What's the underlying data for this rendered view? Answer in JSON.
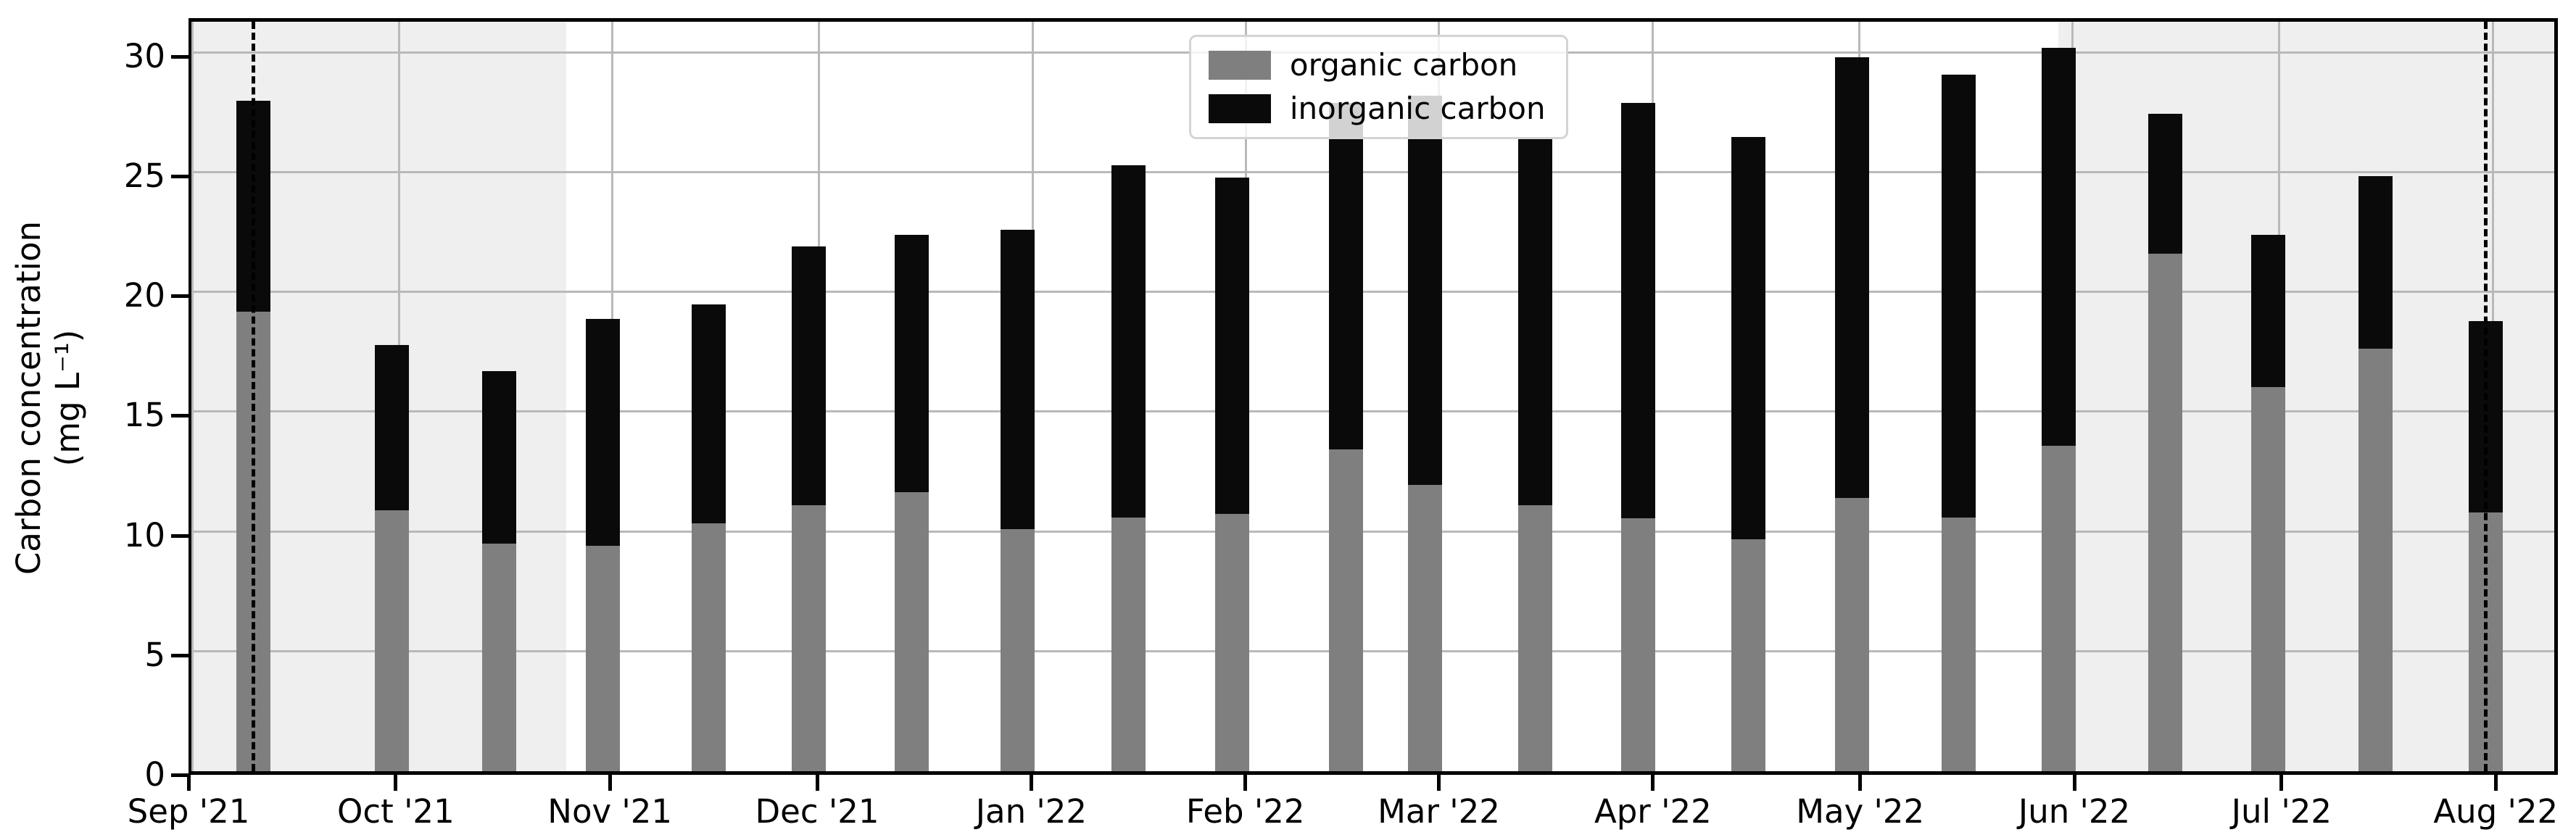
{
  "figure": {
    "kind": "stacked bar chart",
    "background_color": "#ffffff",
    "shaded_region_color": "#efefef",
    "gridline_color": "#b9b9b9",
    "spine_color": "#000000"
  },
  "y_axis": {
    "label_line1": "Carbon concentration",
    "label_line2": "(mg L⁻¹)",
    "tick_values": [
      0,
      5,
      10,
      15,
      20,
      25,
      30
    ],
    "max_value": 31.6
  },
  "x_axis": {
    "total_days": 343,
    "ticks": [
      {
        "label": "Sep '21",
        "day": 0
      },
      {
        "label": "Oct '21",
        "day": 30
      },
      {
        "label": "Nov '21",
        "day": 61
      },
      {
        "label": "Dec '21",
        "day": 91
      },
      {
        "label": "Jan '22",
        "day": 122
      },
      {
        "label": "Feb '22",
        "day": 153
      },
      {
        "label": "Mar '22",
        "day": 181
      },
      {
        "label": "Apr '22",
        "day": 212
      },
      {
        "label": "May '22",
        "day": 242
      },
      {
        "label": "Jun '22",
        "day": 273
      },
      {
        "label": "Jul '22",
        "day": 303
      },
      {
        "label": "Aug '22",
        "day": 334
      }
    ]
  },
  "legend": {
    "items": [
      {
        "label": "organic carbon",
        "color": "#7f7f7f"
      },
      {
        "label": "inorganic carbon",
        "color": "#0a0a0a"
      }
    ]
  },
  "annotations": {
    "dashed_line_days": [
      8.9,
      333
    ],
    "shaded_region_days": [
      [
        0,
        54.3
      ],
      [
        271,
        343
      ]
    ]
  },
  "chart_data": {
    "type": "bar",
    "stacked": true,
    "title": "",
    "xlabel": "",
    "ylabel": "Carbon concentration (mg L⁻¹)",
    "ylim": [
      0,
      31.6
    ],
    "grid": true,
    "legend_position": "upper center",
    "bar_width_days": 4.9,
    "categories": [
      "Sep 9 '21",
      "Sep 29 '21",
      "Oct 15 '21",
      "Oct 30 '21",
      "Nov 14 '21",
      "Nov 29 '21",
      "Dec 14 '21",
      "Dec 29 '21",
      "Jan 14 '22",
      "Jan 29 '22",
      "Feb 14 '22",
      "Feb 26 '22",
      "Mar 15 '22",
      "Mar 30 '22",
      "Apr 15 '22",
      "Apr 30 '22",
      "May 16 '22",
      "May 30 '22",
      "Jun 15 '22",
      "Jun 30 '22",
      "Jul 15 '22",
      "Jul 31 '22"
    ],
    "x_days": [
      8.9,
      29,
      44.6,
      59.6,
      75,
      89.5,
      104.5,
      119.9,
      136,
      151,
      167.5,
      179,
      195,
      210,
      226,
      241,
      256.5,
      271,
      286.5,
      301.5,
      317,
      333
    ],
    "series": [
      {
        "name": "organic carbon",
        "color": "#7f7f7f",
        "values": [
          19.2,
          10.9,
          9.5,
          9.4,
          10.35,
          11.1,
          11.65,
          10.1,
          10.6,
          10.75,
          13.45,
          11.95,
          11.1,
          10.55,
          9.7,
          11.4,
          10.6,
          13.6,
          21.6,
          16.05,
          17.65,
          10.8
        ]
      },
      {
        "name": "inorganic carbon",
        "color": "#0a0a0a",
        "values": [
          8.8,
          6.9,
          7.2,
          9.5,
          9.15,
          10.8,
          10.75,
          12.5,
          14.7,
          14.05,
          14.45,
          16.25,
          15.3,
          17.35,
          16.8,
          18.4,
          18.5,
          16.6,
          5.85,
          6.35,
          7.2,
          8.0
        ]
      }
    ],
    "totals": [
      28.0,
      17.8,
      16.7,
      18.9,
      19.5,
      21.9,
      22.4,
      22.6,
      25.3,
      24.8,
      27.9,
      28.2,
      26.4,
      27.9,
      26.5,
      29.8,
      29.1,
      30.2,
      27.45,
      22.4,
      24.85,
      18.8
    ]
  }
}
